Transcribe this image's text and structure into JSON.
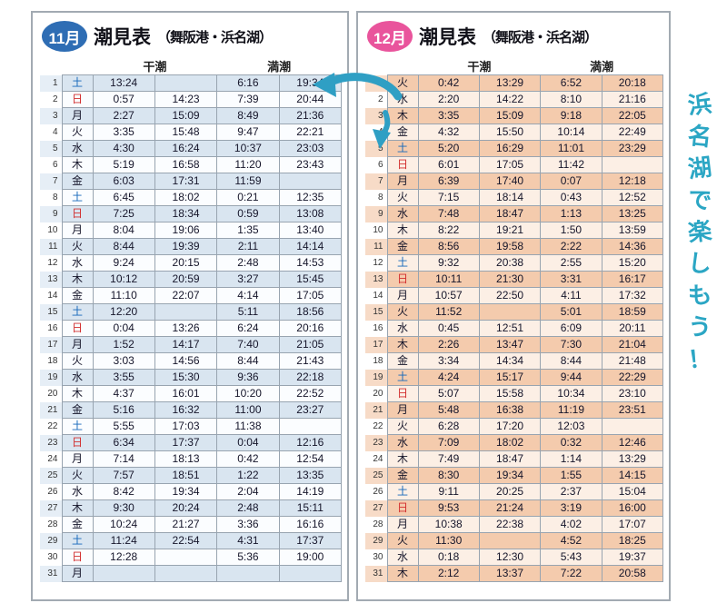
{
  "page": {
    "side_note": "浜名湖で楽しもう！"
  },
  "colors": {
    "nov_badge": "#2e6db4",
    "dec_badge": "#e9549c",
    "nov_stripe": "#d9e5f0",
    "dec_stripe": "#f4cbad",
    "saturday": "#1668bb",
    "sunday": "#d22f2f",
    "accent_teal": "#2ba6c4"
  },
  "left_table": {
    "badge": "11月",
    "title_main": "潮見表",
    "title_sub": "（舞阪港・浜名湖）",
    "headers": {
      "low": "干潮",
      "high": "満潮"
    },
    "rows": [
      {
        "day": "1",
        "dow": "土",
        "low1": "13:24",
        "low2": "",
        "high1": "6:16",
        "high2": "19:34"
      },
      {
        "day": "2",
        "dow": "日",
        "low1": "0:57",
        "low2": "14:23",
        "high1": "7:39",
        "high2": "20:44"
      },
      {
        "day": "3",
        "dow": "月",
        "low1": "2:27",
        "low2": "15:09",
        "high1": "8:49",
        "high2": "21:36"
      },
      {
        "day": "4",
        "dow": "火",
        "low1": "3:35",
        "low2": "15:48",
        "high1": "9:47",
        "high2": "22:21"
      },
      {
        "day": "5",
        "dow": "水",
        "low1": "4:30",
        "low2": "16:24",
        "high1": "10:37",
        "high2": "23:03"
      },
      {
        "day": "6",
        "dow": "木",
        "low1": "5:19",
        "low2": "16:58",
        "high1": "11:20",
        "high2": "23:43"
      },
      {
        "day": "7",
        "dow": "金",
        "low1": "6:03",
        "low2": "17:31",
        "high1": "11:59",
        "high2": ""
      },
      {
        "day": "8",
        "dow": "土",
        "low1": "6:45",
        "low2": "18:02",
        "high1": "0:21",
        "high2": "12:35"
      },
      {
        "day": "9",
        "dow": "日",
        "low1": "7:25",
        "low2": "18:34",
        "high1": "0:59",
        "high2": "13:08"
      },
      {
        "day": "10",
        "dow": "月",
        "low1": "8:04",
        "low2": "19:06",
        "high1": "1:35",
        "high2": "13:40"
      },
      {
        "day": "11",
        "dow": "火",
        "low1": "8:44",
        "low2": "19:39",
        "high1": "2:11",
        "high2": "14:14"
      },
      {
        "day": "12",
        "dow": "水",
        "low1": "9:24",
        "low2": "20:15",
        "high1": "2:48",
        "high2": "14:53"
      },
      {
        "day": "13",
        "dow": "木",
        "low1": "10:12",
        "low2": "20:59",
        "high1": "3:27",
        "high2": "15:45"
      },
      {
        "day": "14",
        "dow": "金",
        "low1": "11:10",
        "low2": "22:07",
        "high1": "4:14",
        "high2": "17:05"
      },
      {
        "day": "15",
        "dow": "土",
        "low1": "12:20",
        "low2": "",
        "high1": "5:11",
        "high2": "18:56"
      },
      {
        "day": "16",
        "dow": "日",
        "low1": "0:04",
        "low2": "13:26",
        "high1": "6:24",
        "high2": "20:16"
      },
      {
        "day": "17",
        "dow": "月",
        "low1": "1:52",
        "low2": "14:17",
        "high1": "7:40",
        "high2": "21:05"
      },
      {
        "day": "18",
        "dow": "火",
        "low1": "3:03",
        "low2": "14:56",
        "high1": "8:44",
        "high2": "21:43"
      },
      {
        "day": "19",
        "dow": "水",
        "low1": "3:55",
        "low2": "15:30",
        "high1": "9:36",
        "high2": "22:18"
      },
      {
        "day": "20",
        "dow": "木",
        "low1": "4:37",
        "low2": "16:01",
        "high1": "10:20",
        "high2": "22:52"
      },
      {
        "day": "21",
        "dow": "金",
        "low1": "5:16",
        "low2": "16:32",
        "high1": "11:00",
        "high2": "23:27"
      },
      {
        "day": "22",
        "dow": "土",
        "low1": "5:55",
        "low2": "17:03",
        "high1": "11:38",
        "high2": ""
      },
      {
        "day": "23",
        "dow": "日",
        "low1": "6:34",
        "low2": "17:37",
        "high1": "0:04",
        "high2": "12:16"
      },
      {
        "day": "24",
        "dow": "月",
        "low1": "7:14",
        "low2": "18:13",
        "high1": "0:42",
        "high2": "12:54"
      },
      {
        "day": "25",
        "dow": "火",
        "low1": "7:57",
        "low2": "18:51",
        "high1": "1:22",
        "high2": "13:35"
      },
      {
        "day": "26",
        "dow": "水",
        "low1": "8:42",
        "low2": "19:34",
        "high1": "2:04",
        "high2": "14:19"
      },
      {
        "day": "27",
        "dow": "木",
        "low1": "9:30",
        "low2": "20:24",
        "high1": "2:48",
        "high2": "15:11"
      },
      {
        "day": "28",
        "dow": "金",
        "low1": "10:24",
        "low2": "21:27",
        "high1": "3:36",
        "high2": "16:16"
      },
      {
        "day": "29",
        "dow": "土",
        "low1": "11:24",
        "low2": "22:54",
        "high1": "4:31",
        "high2": "17:37"
      },
      {
        "day": "30",
        "dow": "日",
        "low1": "12:28",
        "low2": "",
        "high1": "5:36",
        "high2": "19:00"
      },
      {
        "day": "31",
        "dow": "月",
        "low1": "",
        "low2": "",
        "high1": "",
        "high2": ""
      }
    ]
  },
  "right_table": {
    "badge": "12月",
    "title_main": "潮見表",
    "title_sub": "（舞阪港・浜名湖）",
    "headers": {
      "low": "干潮",
      "high": "満潮"
    },
    "rows": [
      {
        "day": "1",
        "dow": "火",
        "low1": "0:42",
        "low2": "13:29",
        "high1": "6:52",
        "high2": "20:18"
      },
      {
        "day": "2",
        "dow": "水",
        "low1": "2:20",
        "low2": "14:22",
        "high1": "8:10",
        "high2": "21:16"
      },
      {
        "day": "3",
        "dow": "木",
        "low1": "3:35",
        "low2": "15:09",
        "high1": "9:18",
        "high2": "22:05"
      },
      {
        "day": "4",
        "dow": "金",
        "low1": "4:32",
        "low2": "15:50",
        "high1": "10:14",
        "high2": "22:49"
      },
      {
        "day": "5",
        "dow": "土",
        "low1": "5:20",
        "low2": "16:29",
        "high1": "11:01",
        "high2": "23:29"
      },
      {
        "day": "6",
        "dow": "日",
        "low1": "6:01",
        "low2": "17:05",
        "high1": "11:42",
        "high2": ""
      },
      {
        "day": "7",
        "dow": "月",
        "low1": "6:39",
        "low2": "17:40",
        "high1": "0:07",
        "high2": "12:18"
      },
      {
        "day": "8",
        "dow": "火",
        "low1": "7:15",
        "low2": "18:14",
        "high1": "0:43",
        "high2": "12:52"
      },
      {
        "day": "9",
        "dow": "水",
        "low1": "7:48",
        "low2": "18:47",
        "high1": "1:13",
        "high2": "13:25"
      },
      {
        "day": "10",
        "dow": "木",
        "low1": "8:22",
        "low2": "19:21",
        "high1": "1:50",
        "high2": "13:59"
      },
      {
        "day": "11",
        "dow": "金",
        "low1": "8:56",
        "low2": "19:58",
        "high1": "2:22",
        "high2": "14:36"
      },
      {
        "day": "12",
        "dow": "土",
        "low1": "9:32",
        "low2": "20:38",
        "high1": "2:55",
        "high2": "15:20"
      },
      {
        "day": "13",
        "dow": "日",
        "low1": "10:11",
        "low2": "21:30",
        "high1": "3:31",
        "high2": "16:17"
      },
      {
        "day": "14",
        "dow": "月",
        "low1": "10:57",
        "low2": "22:50",
        "high1": "4:11",
        "high2": "17:32"
      },
      {
        "day": "15",
        "dow": "火",
        "low1": "11:52",
        "low2": "",
        "high1": "5:01",
        "high2": "18:59"
      },
      {
        "day": "16",
        "dow": "水",
        "low1": "0:45",
        "low2": "12:51",
        "high1": "6:09",
        "high2": "20:11"
      },
      {
        "day": "17",
        "dow": "木",
        "low1": "2:26",
        "low2": "13:47",
        "high1": "7:30",
        "high2": "21:04"
      },
      {
        "day": "18",
        "dow": "金",
        "low1": "3:34",
        "low2": "14:34",
        "high1": "8:44",
        "high2": "21:48"
      },
      {
        "day": "19",
        "dow": "土",
        "low1": "4:24",
        "low2": "15:17",
        "high1": "9:44",
        "high2": "22:29"
      },
      {
        "day": "20",
        "dow": "日",
        "low1": "5:07",
        "low2": "15:58",
        "high1": "10:34",
        "high2": "23:10"
      },
      {
        "day": "21",
        "dow": "月",
        "low1": "5:48",
        "low2": "16:38",
        "high1": "11:19",
        "high2": "23:51"
      },
      {
        "day": "22",
        "dow": "火",
        "low1": "6:28",
        "low2": "17:20",
        "high1": "12:03",
        "high2": ""
      },
      {
        "day": "23",
        "dow": "水",
        "low1": "7:09",
        "low2": "18:02",
        "high1": "0:32",
        "high2": "12:46"
      },
      {
        "day": "24",
        "dow": "木",
        "low1": "7:49",
        "low2": "18:47",
        "high1": "1:14",
        "high2": "13:29"
      },
      {
        "day": "25",
        "dow": "金",
        "low1": "8:30",
        "low2": "19:34",
        "high1": "1:55",
        "high2": "14:15"
      },
      {
        "day": "26",
        "dow": "土",
        "low1": "9:11",
        "low2": "20:25",
        "high1": "2:37",
        "high2": "15:04"
      },
      {
        "day": "27",
        "dow": "日",
        "low1": "9:53",
        "low2": "21:24",
        "high1": "3:19",
        "high2": "16:00"
      },
      {
        "day": "28",
        "dow": "月",
        "low1": "10:38",
        "low2": "22:38",
        "high1": "4:02",
        "high2": "17:07"
      },
      {
        "day": "29",
        "dow": "火",
        "low1": "11:30",
        "low2": "",
        "high1": "4:52",
        "high2": "18:25"
      },
      {
        "day": "30",
        "dow": "水",
        "low1": "0:18",
        "low2": "12:30",
        "high1": "5:43",
        "high2": "19:37"
      },
      {
        "day": "31",
        "dow": "木",
        "low1": "2:12",
        "low2": "13:37",
        "high1": "7:22",
        "high2": "20:58"
      }
    ]
  }
}
